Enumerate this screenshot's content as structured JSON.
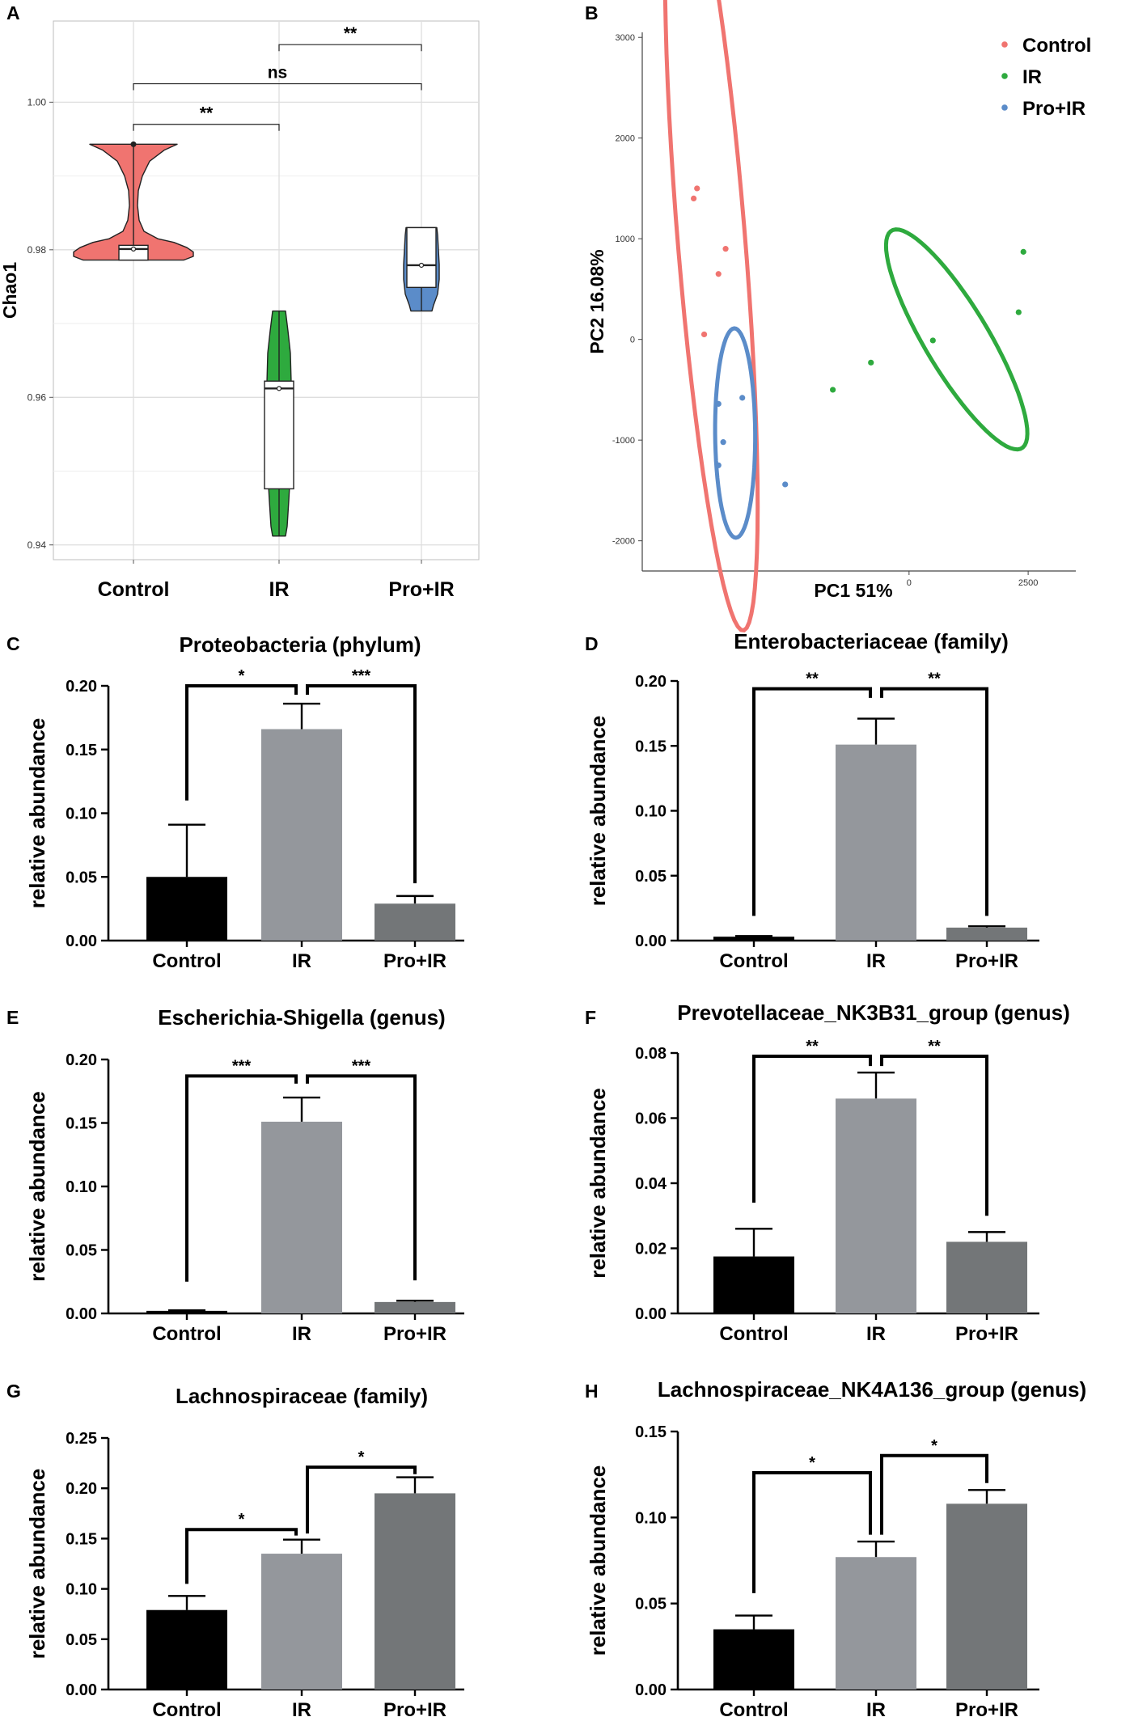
{
  "chart_data": [
    {
      "panel": "A",
      "type": "violin",
      "title": "",
      "xlabel": "",
      "ylabel": "Chao1",
      "categories": [
        "Control",
        "IR",
        "Pro+IR"
      ],
      "ylim": [
        0.938,
        1.011
      ],
      "yticks": [
        0.94,
        0.96,
        0.98,
        1.0
      ],
      "ytick_labels": [
        "0.94",
        "0.96",
        "0.98",
        "1.00"
      ],
      "grid": true,
      "colors": [
        "#f07470",
        "#2eaa3e",
        "#5b8cc9"
      ],
      "groups": [
        {
          "name": "Control",
          "min": 0.9786,
          "q1": 0.9786,
          "median": 0.9801,
          "q3": 0.9806,
          "max": 0.9943,
          "mean": 0.9801,
          "outlier": 0.9943
        },
        {
          "name": "IR",
          "min": 0.9412,
          "q1": 0.9476,
          "median": 0.9612,
          "q3": 0.9622,
          "max": 0.9717,
          "mean": 0.9612
        },
        {
          "name": "Pro+IR",
          "min": 0.9717,
          "q1": 0.9749,
          "median": 0.9779,
          "q3": 0.983,
          "max": 0.983,
          "mean": 0.9779
        }
      ],
      "comparisons": [
        {
          "from": "Control",
          "to": "IR",
          "y": 0.997,
          "label": "**"
        },
        {
          "from": "Control",
          "to": "Pro+IR",
          "y": 1.0025,
          "label": "ns"
        },
        {
          "from": "IR",
          "to": "Pro+IR",
          "y": 1.0078,
          "label": "**"
        }
      ]
    },
    {
      "panel": "B",
      "type": "scatter",
      "title": "",
      "xlabel": "PC1 51%",
      "ylabel": "PC2 16.08%",
      "xlim": [
        -5600,
        3500
      ],
      "ylim": [
        -2300,
        3050
      ],
      "xticks": [
        0,
        2500
      ],
      "xtick_labels": [
        "0",
        "2500"
      ],
      "yticks": [
        -2000,
        -1000,
        0,
        1000,
        2000,
        3000
      ],
      "ytick_labels": [
        "-2000",
        "-1000",
        "0",
        "1000",
        "2000",
        "3000"
      ],
      "legend": {
        "position": "top-right",
        "entries": [
          "Control",
          "IR",
          "Pro+IR"
        ]
      },
      "series": [
        {
          "name": "Control",
          "color": "#f07470",
          "points": [
            [
              -4450,
              1500
            ],
            [
              -4520,
              1400
            ],
            [
              -3850,
              900
            ],
            [
              -4000,
              650
            ],
            [
              -4300,
              50
            ]
          ],
          "ellipse": {
            "cx": -4150,
            "cy": 1000,
            "rx": 3950,
            "ry": 700,
            "angle_deg": -80
          }
        },
        {
          "name": "IR",
          "color": "#2eaa3e",
          "points": [
            [
              -1600,
              -500
            ],
            [
              -800,
              -230
            ],
            [
              500,
              -10
            ],
            [
              2300,
              270
            ],
            [
              2400,
              870
            ]
          ],
          "ellipse": {
            "cx": 1000,
            "cy": 0,
            "rx": 1780,
            "ry": 475,
            "angle_deg": -35
          }
        },
        {
          "name": "Pro+IR",
          "color": "#5b8cc9",
          "points": [
            [
              -3500,
              -580
            ],
            [
              -4000,
              -640
            ],
            [
              -3900,
              -1020
            ],
            [
              -4000,
              -1250
            ],
            [
              -2600,
              -1440
            ]
          ],
          "ellipse": {
            "cx": -3650,
            "cy": -930,
            "rx": 1040,
            "ry": 420,
            "angle_deg": -89
          }
        }
      ]
    },
    {
      "panel": "C",
      "type": "bar",
      "title": "Proteobacteria (phylum)",
      "xlabel": "",
      "ylabel": "relative abundance",
      "categories": [
        "Control",
        "IR",
        "Pro+IR"
      ],
      "values": [
        0.05,
        0.166,
        0.029
      ],
      "errors": [
        0.041,
        0.02,
        0.006
      ],
      "ylim": [
        0,
        0.2
      ],
      "yticks": [
        0,
        0.05,
        0.1,
        0.15,
        0.2
      ],
      "ytick_labels": [
        "0.00",
        "0.05",
        "0.10",
        "0.15",
        "0.20"
      ],
      "colors": [
        "#000000",
        "#94979c",
        "#737678"
      ],
      "comparisons": [
        {
          "from": 0,
          "to": 1,
          "left_y": 0.11,
          "right_y": 0.193,
          "y": 0.2,
          "label": "*"
        },
        {
          "from": 1,
          "to": 2,
          "left_y": 0.193,
          "right_y": 0.045,
          "y": 0.2,
          "label": "***"
        }
      ]
    },
    {
      "panel": "D",
      "type": "bar",
      "title": "Enterobacteriaceae (family)",
      "xlabel": "",
      "ylabel": "relative abundance",
      "categories": [
        "Control",
        "IR",
        "Pro+IR"
      ],
      "values": [
        0.003,
        0.151,
        0.01
      ],
      "errors": [
        0.0005,
        0.02,
        0.001
      ],
      "ylim": [
        0,
        0.2
      ],
      "yticks": [
        0,
        0.05,
        0.1,
        0.15,
        0.2
      ],
      "ytick_labels": [
        "0.00",
        "0.05",
        "0.10",
        "0.15",
        "0.20"
      ],
      "colors": [
        "#000000",
        "#94979c",
        "#737678"
      ],
      "comparisons": [
        {
          "from": 0,
          "to": 1,
          "left_y": 0.019,
          "right_y": 0.187,
          "y": 0.194,
          "label": "**"
        },
        {
          "from": 1,
          "to": 2,
          "left_y": 0.187,
          "right_y": 0.019,
          "y": 0.194,
          "label": "**"
        }
      ]
    },
    {
      "panel": "E",
      "type": "bar",
      "title": "Escherichia-Shigella (genus)",
      "xlabel": "",
      "ylabel": "relative abundance",
      "categories": [
        "Control",
        "IR",
        "Pro+IR"
      ],
      "values": [
        0.002,
        0.151,
        0.009
      ],
      "errors": [
        0.0005,
        0.019,
        0.001
      ],
      "ylim": [
        0,
        0.2
      ],
      "yticks": [
        0,
        0.05,
        0.1,
        0.15,
        0.2
      ],
      "ytick_labels": [
        "0.00",
        "0.05",
        "0.10",
        "0.15",
        "0.20"
      ],
      "colors": [
        "#000000",
        "#94979c",
        "#737678"
      ],
      "comparisons": [
        {
          "from": 0,
          "to": 1,
          "left_y": 0.025,
          "right_y": 0.181,
          "y": 0.187,
          "label": "***"
        },
        {
          "from": 1,
          "to": 2,
          "left_y": 0.181,
          "right_y": 0.026,
          "y": 0.187,
          "label": "***"
        }
      ]
    },
    {
      "panel": "F",
      "type": "bar",
      "title": "Prevotellaceae_NK3B31_group (genus)",
      "xlabel": "",
      "ylabel": "relative abundance",
      "categories": [
        "Control",
        "IR",
        "Pro+IR"
      ],
      "values": [
        0.0175,
        0.066,
        0.022
      ],
      "errors": [
        0.0085,
        0.008,
        0.003
      ],
      "ylim": [
        0,
        0.08
      ],
      "yticks": [
        0,
        0.02,
        0.04,
        0.06,
        0.08
      ],
      "ytick_labels": [
        "0.00",
        "0.02",
        "0.04",
        "0.06",
        "0.08"
      ],
      "colors": [
        "#000000",
        "#94979c",
        "#737678"
      ],
      "comparisons": [
        {
          "from": 0,
          "to": 1,
          "left_y": 0.034,
          "right_y": 0.076,
          "y": 0.079,
          "label": "**"
        },
        {
          "from": 1,
          "to": 2,
          "left_y": 0.076,
          "right_y": 0.03,
          "y": 0.079,
          "label": "**"
        }
      ]
    },
    {
      "panel": "G",
      "type": "bar",
      "title": "Lachnospiraceae (family)",
      "xlabel": "",
      "ylabel": "relative abundance",
      "categories": [
        "Control",
        "IR",
        "Pro+IR"
      ],
      "values": [
        0.079,
        0.135,
        0.195
      ],
      "errors": [
        0.014,
        0.014,
        0.016
      ],
      "ylim": [
        0,
        0.25
      ],
      "yticks": [
        0,
        0.05,
        0.1,
        0.15,
        0.2,
        0.25
      ],
      "ytick_labels": [
        "0.00",
        "0.05",
        "0.10",
        "0.15",
        "0.20",
        "0.25"
      ],
      "colors": [
        "#000000",
        "#94979c",
        "#737678"
      ],
      "comparisons": [
        {
          "from": 0,
          "to": 1,
          "left_y": 0.105,
          "right_y": 0.153,
          "y": 0.159,
          "label": "*"
        },
        {
          "from": 1,
          "to": 2,
          "left_y": 0.155,
          "right_y": 0.214,
          "y": 0.221,
          "label": "*"
        }
      ]
    },
    {
      "panel": "H",
      "type": "bar",
      "title": "Lachnospiraceae_NK4A136_group (genus)",
      "xlabel": "",
      "ylabel": "relative abundance",
      "categories": [
        "Control",
        "IR",
        "Pro+IR"
      ],
      "values": [
        0.035,
        0.077,
        0.108
      ],
      "errors": [
        0.008,
        0.009,
        0.008
      ],
      "ylim": [
        0,
        0.15
      ],
      "yticks": [
        0,
        0.05,
        0.1,
        0.15
      ],
      "ytick_labels": [
        "0.00",
        "0.05",
        "0.10",
        "0.15"
      ],
      "colors": [
        "#000000",
        "#94979c",
        "#737678"
      ],
      "comparisons": [
        {
          "from": 0,
          "to": 1,
          "left_y": 0.056,
          "right_y": 0.09,
          "y": 0.126,
          "label": "*"
        },
        {
          "from": 1,
          "to": 2,
          "left_y": 0.09,
          "right_y": 0.12,
          "y": 0.136,
          "label": "*"
        }
      ]
    }
  ]
}
